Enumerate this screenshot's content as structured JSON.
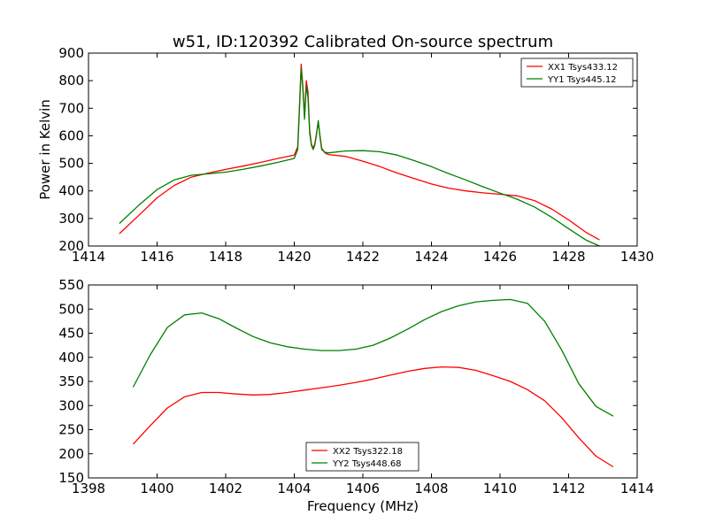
{
  "chart_data": [
    {
      "type": "line",
      "title": "w51, ID:120392 Calibrated On-source spectrum",
      "xlabel": "",
      "ylabel": "Power in Kelvin",
      "xlim": [
        1414,
        1430
      ],
      "ylim": [
        200,
        900
      ],
      "xticks": [
        1414,
        1416,
        1418,
        1420,
        1422,
        1424,
        1426,
        1428,
        1430
      ],
      "yticks": [
        200,
        300,
        400,
        500,
        600,
        700,
        800,
        900
      ],
      "legend_position": "top-right",
      "series": [
        {
          "name": "XX1 Tsys433.12",
          "color": "#ff0000",
          "x": [
            1414.9,
            1415.5,
            1416.0,
            1416.5,
            1417.0,
            1417.5,
            1418.0,
            1418.5,
            1419.0,
            1419.5,
            1420.0,
            1420.1,
            1420.15,
            1420.2,
            1420.25,
            1420.3,
            1420.35,
            1420.4,
            1420.45,
            1420.5,
            1420.55,
            1420.6,
            1420.65,
            1420.7,
            1420.75,
            1420.8,
            1420.9,
            1421.0,
            1421.5,
            1422.0,
            1422.5,
            1423.0,
            1423.5,
            1424.0,
            1424.5,
            1425.0,
            1425.5,
            1426.0,
            1426.5,
            1427.0,
            1427.5,
            1428.0,
            1428.5,
            1428.9
          ],
          "values": [
            245,
            315,
            375,
            420,
            450,
            465,
            478,
            490,
            503,
            517,
            530,
            560,
            700,
            860,
            780,
            670,
            800,
            760,
            620,
            570,
            555,
            570,
            610,
            650,
            600,
            555,
            537,
            532,
            525,
            508,
            488,
            465,
            445,
            425,
            410,
            400,
            393,
            388,
            382,
            365,
            335,
            295,
            250,
            222
          ]
        },
        {
          "name": "YY1 Tsys445.12",
          "color": "#008000",
          "x": [
            1414.9,
            1415.5,
            1416.0,
            1416.5,
            1417.0,
            1417.5,
            1418.0,
            1418.5,
            1419.0,
            1419.5,
            1420.0,
            1420.1,
            1420.15,
            1420.2,
            1420.25,
            1420.3,
            1420.35,
            1420.4,
            1420.45,
            1420.5,
            1420.55,
            1420.6,
            1420.65,
            1420.7,
            1420.75,
            1420.8,
            1420.9,
            1421.0,
            1421.5,
            1422.0,
            1422.5,
            1423.0,
            1423.5,
            1424.0,
            1424.5,
            1425.0,
            1425.5,
            1426.0,
            1426.5,
            1427.0,
            1427.5,
            1428.0,
            1428.5,
            1428.9
          ],
          "values": [
            282,
            352,
            405,
            440,
            457,
            462,
            468,
            478,
            490,
            503,
            518,
            550,
            690,
            845,
            770,
            660,
            780,
            740,
            610,
            565,
            550,
            565,
            605,
            655,
            595,
            550,
            540,
            538,
            545,
            546,
            542,
            530,
            510,
            488,
            463,
            440,
            415,
            392,
            370,
            342,
            305,
            263,
            222,
            200
          ]
        }
      ]
    },
    {
      "type": "line",
      "title": "",
      "xlabel": "Frequency (MHz)",
      "ylabel": "",
      "xlim": [
        1398,
        1414
      ],
      "ylim": [
        150,
        550
      ],
      "xticks": [
        1398,
        1400,
        1402,
        1404,
        1406,
        1408,
        1410,
        1412,
        1414
      ],
      "yticks": [
        150,
        200,
        250,
        300,
        350,
        400,
        450,
        500,
        550
      ],
      "legend_position": "bottom-center",
      "series": [
        {
          "name": "XX2 Tsys322.18",
          "color": "#ff0000",
          "x": [
            1399.3,
            1399.8,
            1400.3,
            1400.8,
            1401.3,
            1401.8,
            1402.3,
            1402.8,
            1403.3,
            1403.8,
            1404.3,
            1404.8,
            1405.3,
            1405.8,
            1406.3,
            1406.8,
            1407.3,
            1407.8,
            1408.3,
            1408.8,
            1409.3,
            1409.8,
            1410.3,
            1410.8,
            1411.3,
            1411.8,
            1412.3,
            1412.8,
            1413.3
          ],
          "values": [
            220,
            258,
            295,
            318,
            327,
            327,
            324,
            322,
            323,
            327,
            332,
            337,
            342,
            348,
            355,
            363,
            371,
            377,
            380,
            379,
            373,
            362,
            350,
            333,
            310,
            275,
            233,
            195,
            173
          ]
        },
        {
          "name": "YY2 Tsys448.68",
          "color": "#008000",
          "x": [
            1399.3,
            1399.8,
            1400.3,
            1400.8,
            1401.3,
            1401.8,
            1402.3,
            1402.8,
            1403.3,
            1403.8,
            1404.3,
            1404.8,
            1405.3,
            1405.8,
            1406.3,
            1406.8,
            1407.3,
            1407.8,
            1408.3,
            1408.8,
            1409.3,
            1409.8,
            1410.3,
            1410.8,
            1411.3,
            1411.8,
            1412.3,
            1412.8,
            1413.3
          ],
          "values": [
            338,
            405,
            462,
            488,
            492,
            480,
            461,
            443,
            430,
            422,
            417,
            414,
            414,
            417,
            425,
            440,
            458,
            478,
            495,
            507,
            515,
            518,
            520,
            512,
            475,
            415,
            345,
            298,
            278
          ]
        }
      ]
    }
  ]
}
